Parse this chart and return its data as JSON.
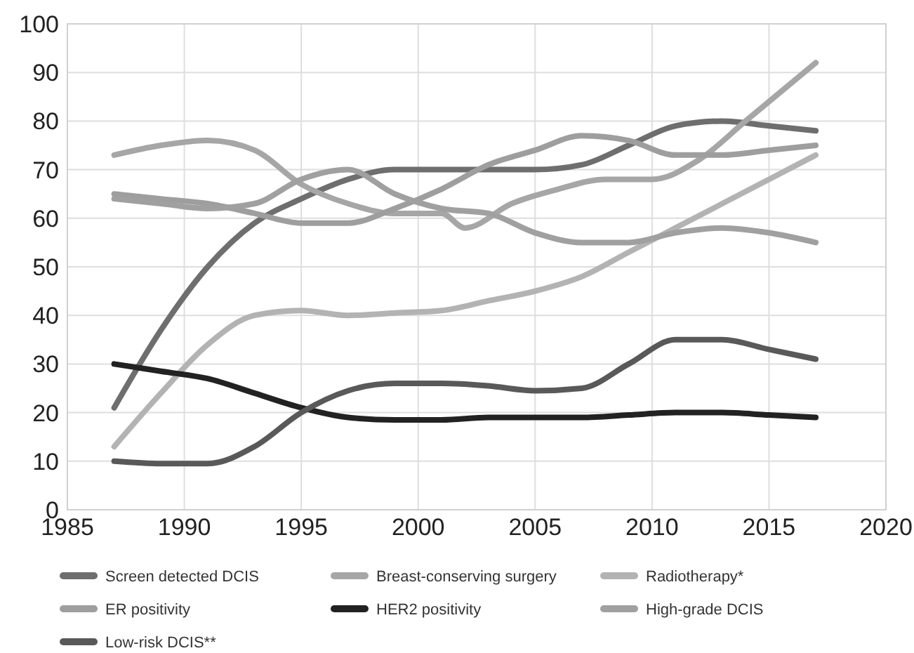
{
  "chart_data": {
    "type": "line",
    "xlim": [
      1985,
      2020
    ],
    "xticks": [
      1985,
      1990,
      1995,
      2000,
      2005,
      2010,
      2015,
      2020
    ],
    "ylim": [
      0,
      100
    ],
    "yticks": [
      0,
      10,
      20,
      30,
      40,
      50,
      60,
      70,
      80,
      90,
      100
    ],
    "grid": true,
    "legend": "bottom",
    "marker": "none",
    "line_style": "solid",
    "series": [
      {
        "name": "Screen detected DCIS",
        "color": "#6e6e6e",
        "x": [
          1987,
          1989,
          1991,
          1993,
          1995,
          1997,
          1999,
          2001,
          2003,
          2005,
          2007,
          2009,
          2011,
          2013,
          2015,
          2017
        ],
        "values": [
          21,
          37,
          50,
          59,
          64,
          68,
          70,
          70,
          70,
          70,
          71,
          75,
          79,
          80,
          79,
          78
        ]
      },
      {
        "name": "Breast-conserving surgery",
        "color": "#a6a6a6",
        "x": [
          1987,
          1989,
          1991,
          1993,
          1995,
          1997,
          1999,
          2001,
          2002,
          2004,
          2006,
          2008,
          2010,
          2012,
          2014,
          2017
        ],
        "values": [
          73,
          75,
          76,
          74,
          67,
          63,
          61,
          61,
          58,
          63,
          66,
          68,
          68,
          72,
          80,
          92
        ]
      },
      {
        "name": "Radiotherapy*",
        "color": "#b3b3b3",
        "x": [
          1987,
          1989,
          1991,
          1993,
          1995,
          1997,
          1999,
          2001,
          2003,
          2005,
          2007,
          2009,
          2011,
          2013,
          2015,
          2017
        ],
        "values": [
          13,
          24,
          34,
          40,
          41,
          40,
          40.5,
          41,
          43,
          45,
          48,
          53,
          58,
          63,
          68,
          73
        ]
      },
      {
        "name": "ER positivity",
        "color": "#9e9e9e",
        "x": [
          1987,
          1989,
          1991,
          1993,
          1995,
          1997,
          1999,
          2001,
          2003,
          2005,
          2007,
          2009,
          2011,
          2013,
          2015,
          2017
        ],
        "values": [
          65,
          64,
          63,
          61,
          59,
          59,
          62,
          66,
          71,
          74,
          77,
          76,
          73,
          73,
          74,
          75
        ]
      },
      {
        "name": "HER2 positivity",
        "color": "#222222",
        "x": [
          1987,
          1989,
          1991,
          1993,
          1995,
          1997,
          1999,
          2001,
          2003,
          2005,
          2007,
          2009,
          2011,
          2013,
          2015,
          2017
        ],
        "values": [
          30,
          28.5,
          27,
          24,
          21,
          19,
          18.5,
          18.5,
          19,
          19,
          19,
          19.5,
          20,
          20,
          19.5,
          19
        ]
      },
      {
        "name": "High-grade DCIS",
        "color": "#a0a0a0",
        "x": [
          1987,
          1989,
          1991,
          1993,
          1995,
          1997,
          1999,
          2001,
          2003,
          2005,
          2007,
          2009,
          2011,
          2013,
          2015,
          2017
        ],
        "values": [
          64,
          63,
          62,
          63,
          68,
          70,
          65,
          62,
          61,
          57,
          55,
          55,
          57,
          58,
          57,
          55
        ]
      },
      {
        "name": "Low-risk DCIS**",
        "color": "#595959",
        "x": [
          1987,
          1989,
          1991,
          1993,
          1995,
          1997,
          1999,
          2001,
          2003,
          2005,
          2007,
          2009,
          2011,
          2013,
          2015,
          2017
        ],
        "values": [
          10,
          9.5,
          9.5,
          13,
          20,
          24.5,
          26,
          26,
          25.5,
          24.5,
          25,
          30,
          35,
          35,
          33,
          31
        ]
      }
    ]
  }
}
